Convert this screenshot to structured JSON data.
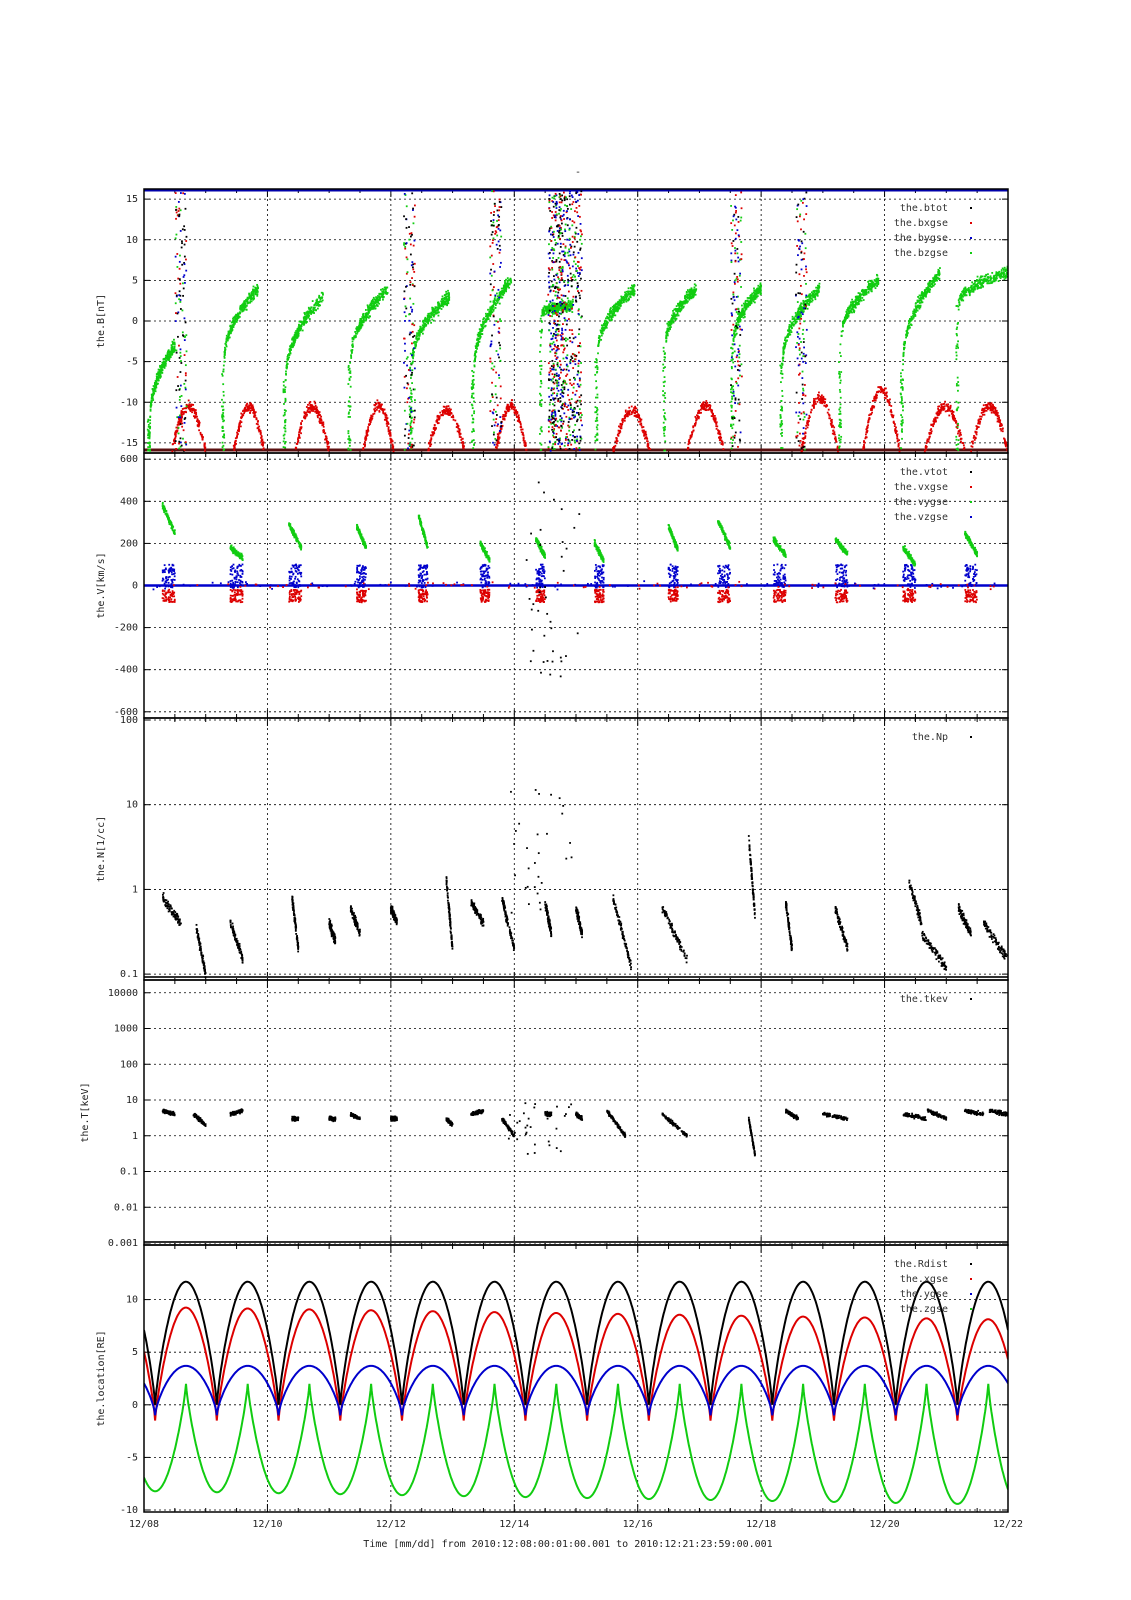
{
  "figure": {
    "top_mark": "-",
    "xlabel": "Time [mm/dd]  from 2010:12:08:00:01:00.001  to  2010:12:21:23:59:00.001",
    "x_tick_labels": [
      "12/08",
      "12/10",
      "12/12",
      "12/14",
      "12/16",
      "12/18",
      "12/20",
      "12/22"
    ]
  },
  "chart_data": [
    {
      "type": "scatter",
      "ylabel": "the.B[nT]",
      "xlim": [
        0,
        14
      ],
      "ylim": [
        -16,
        16
      ],
      "y_ticks": [
        -15,
        -10,
        -5,
        0,
        5,
        10,
        15
      ],
      "grid": true,
      "legend_position": "top-right",
      "series": [
        {
          "name": "the.btot",
          "color": "#000000",
          "segments": [
            [
              0,
              14,
              -16,
              -16
            ]
          ]
        },
        {
          "name": "the.bxgse",
          "color": "#dd0000",
          "arcs": [
            [
              0.45,
              1.0,
              -10.5
            ],
            [
              1.45,
              1.95,
              -10.5
            ],
            [
              2.45,
              3.0,
              -10.5
            ],
            [
              3.55,
              4.05,
              -10.5
            ],
            [
              4.6,
              5.2,
              -11
            ],
            [
              5.7,
              6.2,
              -10.5
            ],
            [
              7.6,
              8.2,
              -11
            ],
            [
              8.8,
              9.4,
              -10.5
            ],
            [
              10.65,
              11.25,
              -9.5
            ],
            [
              11.65,
              12.25,
              -8.5
            ],
            [
              12.65,
              13.3,
              -10.5
            ],
            [
              13.4,
              14.0,
              -10.5
            ]
          ]
        },
        {
          "name": "the.bygse",
          "color": "#0000cc",
          "segments": []
        },
        {
          "name": "the.bzgse",
          "color": "#11cc11",
          "segments": [
            [
              0.1,
              0.5,
              -12,
              -3
            ],
            [
              1.3,
              1.85,
              -5,
              4
            ],
            [
              2.3,
              2.9,
              -7,
              3
            ],
            [
              3.35,
              3.95,
              -5,
              4
            ],
            [
              4.35,
              4.95,
              -5,
              3
            ],
            [
              5.35,
              5.95,
              -6,
              5
            ],
            [
              6.45,
              6.95,
              1,
              2
            ],
            [
              7.35,
              7.95,
              -4,
              4
            ],
            [
              8.45,
              8.95,
              -3,
              4
            ],
            [
              9.55,
              10.0,
              -3,
              4
            ],
            [
              10.35,
              10.95,
              -5,
              4
            ],
            [
              11.3,
              11.9,
              -2,
              5
            ],
            [
              12.3,
              12.9,
              -5,
              6
            ],
            [
              13.2,
              14.0,
              2,
              6
            ]
          ]
        }
      ]
    },
    {
      "type": "scatter",
      "ylabel": "the.V[km/s]",
      "xlim": [
        0,
        14
      ],
      "ylim": [
        -620,
        620
      ],
      "y_ticks": [
        -600,
        -400,
        -200,
        0,
        200,
        400,
        600
      ],
      "grid": true,
      "legend_position": "top-right",
      "series": [
        {
          "name": "the.vtot",
          "color": "#000000"
        },
        {
          "name": "the.vxgse",
          "color": "#dd0000"
        },
        {
          "name": "the.vygse",
          "color": "#11cc11",
          "clusters": [
            [
              0.3,
              0.5,
              250,
              380
            ],
            [
              1.4,
              1.6,
              130,
              180
            ],
            [
              2.35,
              2.55,
              180,
              290
            ],
            [
              3.45,
              3.6,
              180,
              280
            ],
            [
              4.45,
              4.6,
              180,
              330
            ],
            [
              5.45,
              5.6,
              120,
              200
            ],
            [
              6.35,
              6.5,
              140,
              220
            ],
            [
              7.3,
              7.45,
              120,
              200
            ],
            [
              8.5,
              8.65,
              170,
              280
            ],
            [
              9.3,
              9.5,
              180,
              310
            ],
            [
              10.2,
              10.4,
              140,
              220
            ],
            [
              11.2,
              11.4,
              150,
              220
            ],
            [
              12.3,
              12.5,
              100,
              180
            ],
            [
              13.3,
              13.5,
              150,
              250
            ]
          ]
        },
        {
          "name": "the.vzgse",
          "color": "#0000cc",
          "baseline": 0
        }
      ]
    },
    {
      "type": "scatter",
      "ylabel": "the.N[1/cc]",
      "xlim": [
        0,
        14
      ],
      "ylim": [
        0.09,
        100
      ],
      "y_scale": "log",
      "y_ticks": [
        0.1,
        1,
        10,
        100
      ],
      "legend_position": "top-right",
      "series": [
        {
          "name": "the.Np",
          "color": "#000000",
          "segments": [
            [
              0.3,
              0.6,
              0.8,
              0.4
            ],
            [
              0.85,
              1.0,
              0.35,
              0.1
            ],
            [
              1.4,
              1.6,
              0.4,
              0.15
            ],
            [
              2.4,
              2.5,
              0.8,
              0.2
            ],
            [
              3.0,
              3.1,
              0.4,
              0.25
            ],
            [
              3.35,
              3.5,
              0.6,
              0.3
            ],
            [
              4.0,
              4.1,
              0.6,
              0.4
            ],
            [
              4.9,
              5.0,
              1.3,
              0.2
            ],
            [
              5.3,
              5.5,
              0.7,
              0.4
            ],
            [
              5.8,
              6.0,
              0.8,
              0.2
            ],
            [
              6.5,
              6.6,
              0.7,
              0.3
            ],
            [
              7.0,
              7.1,
              0.6,
              0.3
            ],
            [
              7.6,
              7.9,
              0.8,
              0.12
            ],
            [
              8.4,
              8.8,
              0.6,
              0.15
            ],
            [
              9.8,
              9.9,
              4.0,
              0.5
            ],
            [
              10.4,
              10.5,
              0.7,
              0.2
            ],
            [
              11.2,
              11.4,
              0.6,
              0.2
            ],
            [
              12.4,
              12.6,
              1.2,
              0.4
            ],
            [
              12.6,
              13.0,
              0.3,
              0.12
            ],
            [
              13.2,
              13.4,
              0.6,
              0.3
            ],
            [
              13.6,
              14.0,
              0.4,
              0.15
            ]
          ]
        }
      ]
    },
    {
      "type": "scatter",
      "ylabel": "the.T[keV]",
      "xlim": [
        0,
        14
      ],
      "ylim": [
        0.001,
        20000
      ],
      "y_scale": "log",
      "y_ticks": [
        0.001,
        0.01,
        0.1,
        1,
        10,
        100,
        1000,
        10000
      ],
      "y_tick_labels": [
        "0.001",
        "0.01",
        "0.1",
        "1",
        "10",
        "100",
        "1000",
        "10000"
      ],
      "legend_position": "top-right",
      "series": [
        {
          "name": "the.tkev",
          "color": "#000000",
          "segments": [
            [
              0.3,
              0.5,
              5,
              4
            ],
            [
              0.8,
              1.0,
              4,
              2
            ],
            [
              1.4,
              1.6,
              4,
              5
            ],
            [
              2.4,
              2.5,
              3,
              3
            ],
            [
              3.0,
              3.1,
              3,
              3
            ],
            [
              3.35,
              3.5,
              4,
              3
            ],
            [
              4.0,
              4.1,
              3,
              3
            ],
            [
              4.9,
              5.0,
              3,
              2
            ],
            [
              5.3,
              5.5,
              4,
              5
            ],
            [
              5.8,
              6.0,
              3,
              1
            ],
            [
              6.5,
              6.6,
              4,
              4
            ],
            [
              7.0,
              7.1,
              4,
              3
            ],
            [
              7.5,
              7.8,
              5,
              1
            ],
            [
              8.4,
              8.8,
              4,
              1
            ],
            [
              9.8,
              9.9,
              3,
              0.3
            ],
            [
              10.4,
              10.6,
              5,
              3
            ],
            [
              11.0,
              11.4,
              4,
              3
            ],
            [
              12.3,
              12.7,
              4,
              3
            ],
            [
              12.7,
              13.0,
              5,
              3
            ],
            [
              13.3,
              13.6,
              5,
              4
            ],
            [
              13.7,
              14.0,
              5,
              4
            ]
          ]
        }
      ]
    },
    {
      "type": "line",
      "ylabel": "the.location[RE]",
      "xlim": [
        0,
        14
      ],
      "ylim": [
        -10,
        15
      ],
      "y_ticks": [
        -10,
        -5,
        0,
        5,
        10
      ],
      "grid": true,
      "legend_position": "top-right",
      "orbit_period_days": 1.0,
      "perigee_phase_day": 0.18,
      "series": [
        {
          "name": "the.Rdist",
          "color": "#000000",
          "apogee": 11.7,
          "perigee": 0.0
        },
        {
          "name": "the.xgse",
          "color": "#dd0000",
          "apogee_start": 9.3,
          "apogee_end": 8.1,
          "perigee": -1.5
        },
        {
          "name": "the.ygse",
          "color": "#0000cc",
          "apogee": 3.7,
          "perigee": -1.0
        },
        {
          "name": "the.zgse",
          "color": "#11cc11",
          "min_start": -8.2,
          "min_end": -9.5,
          "max": 2.0
        }
      ]
    }
  ]
}
